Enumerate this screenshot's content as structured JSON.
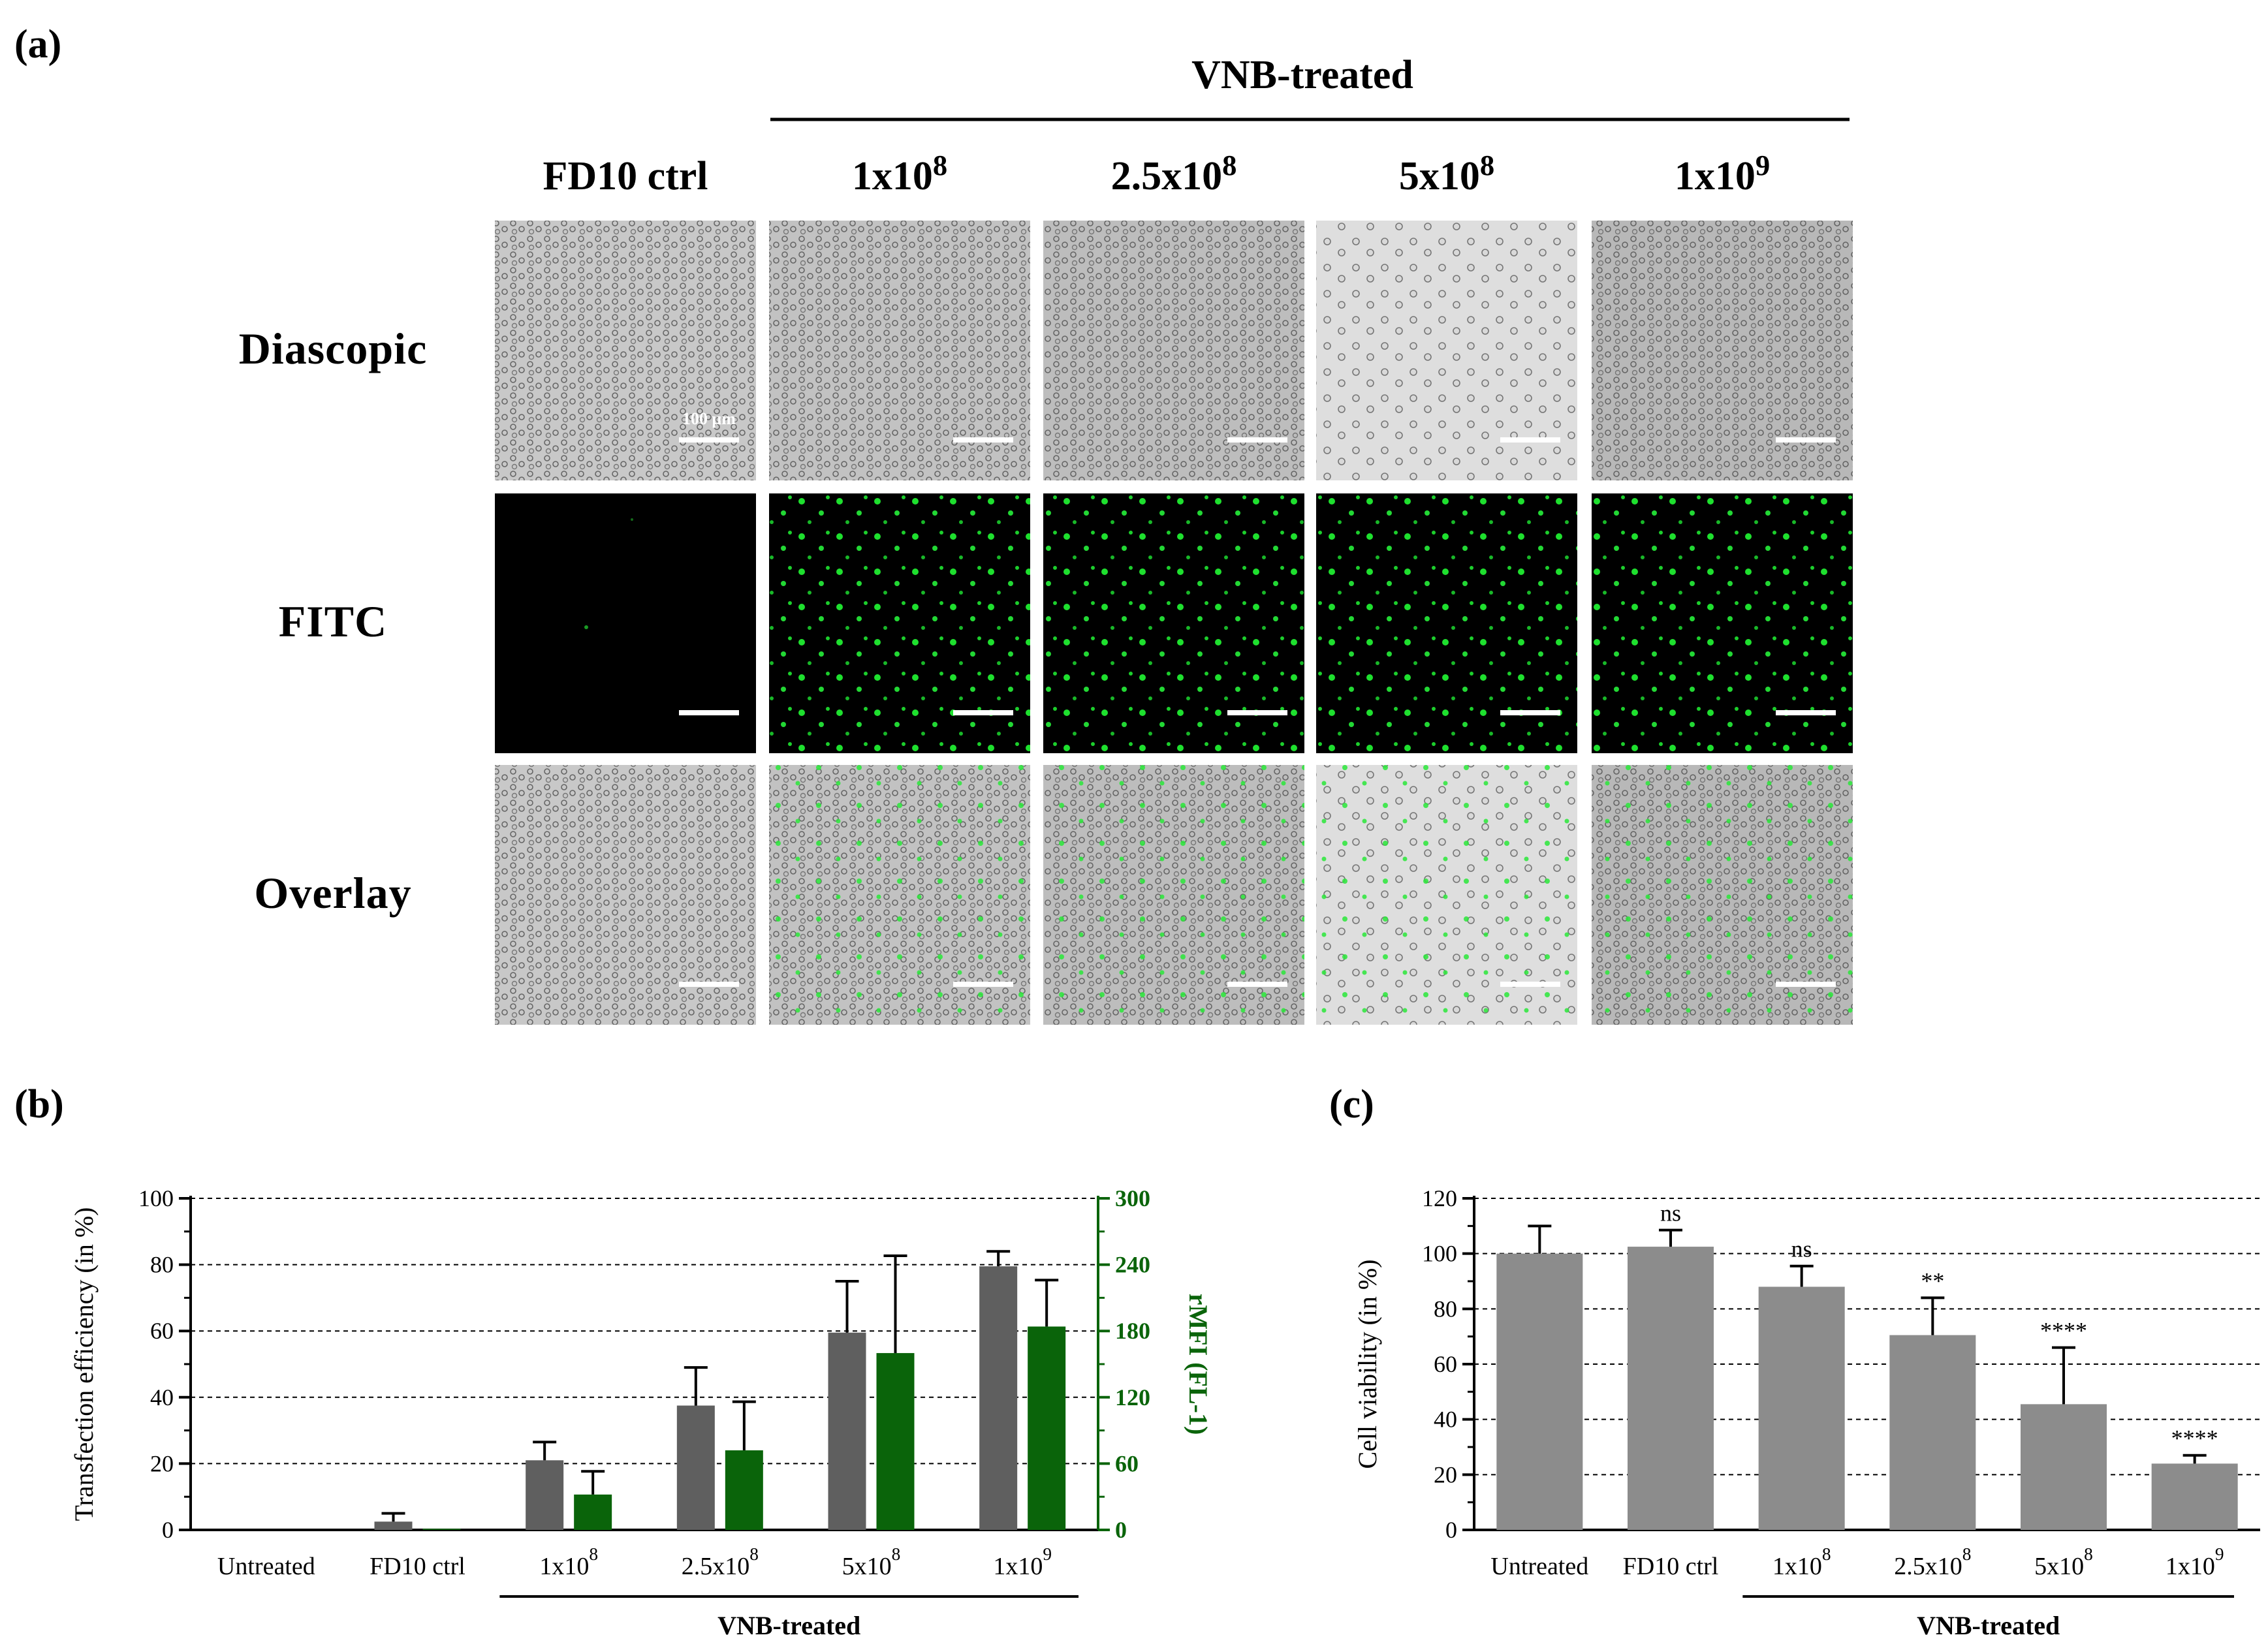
{
  "panel_a": {
    "letter": "(a)",
    "group_label": "VNB-treated",
    "columns": [
      {
        "label": "FD10 ctrl"
      },
      {
        "label": "1x10",
        "exp": "8"
      },
      {
        "label": "2.5x10",
        "exp": "8"
      },
      {
        "label": "5x10",
        "exp": "8"
      },
      {
        "label": "1x10",
        "exp": "9"
      }
    ],
    "rows": [
      "Diascopic",
      "FITC",
      "Overlay"
    ],
    "scale_bar_label": "100 μm",
    "colors": {
      "fluorescence": "#20e030",
      "dark_bg": "#000000"
    }
  },
  "chart_data": [
    {
      "panel": "(b)",
      "type": "bar",
      "categories": [
        "Untreated",
        "FD10 ctrl",
        "1x10^8",
        "2.5x10^8",
        "5x10^8",
        "1x10^9"
      ],
      "category_labels": [
        {
          "base": "Untreated",
          "exp": ""
        },
        {
          "base": "FD10 ctrl",
          "exp": ""
        },
        {
          "base": "1x10",
          "exp": "8"
        },
        {
          "base": "2.5x10",
          "exp": "8"
        },
        {
          "base": "5x10",
          "exp": "8"
        },
        {
          "base": "1x10",
          "exp": "9"
        }
      ],
      "series": [
        {
          "axis": "left",
          "color": "#5f5f5f",
          "values": [
            0,
            2.5,
            21,
            37.5,
            59.5,
            79.5
          ],
          "errors": [
            0,
            2.5,
            5.5,
            11.5,
            15.5,
            4.5
          ]
        },
        {
          "axis": "right",
          "color": "#0a640a",
          "values": [
            0,
            1,
            32,
            72,
            160,
            184
          ],
          "errors": [
            0,
            0,
            21,
            44,
            88,
            42
          ]
        }
      ],
      "ylabel": "Transfection efficiency (in %)",
      "ylabel_right": "rMFI (FL-1)",
      "ylim": [
        0,
        100
      ],
      "yticks": [
        0,
        20,
        40,
        60,
        80,
        100
      ],
      "ylim_right": [
        0,
        300
      ],
      "yticks_right": [
        0,
        60,
        120,
        180,
        240,
        300
      ],
      "group_label": "VNB-treated",
      "grid": true
    },
    {
      "panel": "(c)",
      "type": "bar",
      "categories": [
        "Untreated",
        "FD10 ctrl",
        "1x10^8",
        "2.5x10^8",
        "5x10^8",
        "1x10^9"
      ],
      "category_labels": [
        {
          "base": "Untreated",
          "exp": ""
        },
        {
          "base": "FD10 ctrl",
          "exp": ""
        },
        {
          "base": "1x10",
          "exp": "8"
        },
        {
          "base": "2.5x10",
          "exp": "8"
        },
        {
          "base": "5x10",
          "exp": "8"
        },
        {
          "base": "1x10",
          "exp": "9"
        }
      ],
      "series": [
        {
          "color": "#8c8c8c",
          "values": [
            100,
            102.5,
            88,
            70.5,
            45.5,
            24
          ],
          "errors": [
            10,
            6,
            7.5,
            13.5,
            20.5,
            3
          ]
        }
      ],
      "annotations": [
        "",
        "ns",
        "ns",
        "**",
        "****",
        "****"
      ],
      "ylabel": "Cell viability (in %)",
      "ylim": [
        0,
        120
      ],
      "yticks": [
        0,
        20,
        40,
        60,
        80,
        100,
        120
      ],
      "group_label": "VNB-treated",
      "grid": true
    }
  ]
}
